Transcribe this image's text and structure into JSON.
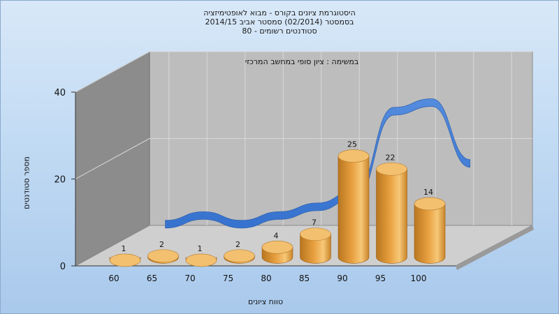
{
  "title_lines": [
    "היסטוגרמת ציונים בקורס - מבוא לאופטימיזציה",
    "בסמסטר  (02/2014)  סמסטר אביב 2014/15",
    "סטודנטים רשומים - 80"
  ],
  "chart_data": {
    "type": "bar",
    "categories": [
      "60",
      "65",
      "70",
      "75",
      "80",
      "85",
      "90",
      "95",
      "100"
    ],
    "values": [
      1,
      2,
      1,
      2,
      4,
      7,
      25,
      22,
      14
    ],
    "trend_values": [
      4,
      6,
      4,
      6,
      8,
      11,
      30,
      32,
      18
    ],
    "title": "במשימה : ציון סופי במחשב המרכזי",
    "xlabel": "טווח ציונים",
    "ylabel": "מספר סטודנטים",
    "ylim": [
      0,
      40
    ],
    "yticks": [
      0,
      20,
      40
    ],
    "grid": true,
    "colors": {
      "bar": "#e8a040",
      "bar_top": "#f3c070",
      "trend": "#2f6fd0",
      "wall_back": "#bdbdbd",
      "wall_left": "#8c8c8c",
      "floor": "#cfcfcf"
    }
  }
}
